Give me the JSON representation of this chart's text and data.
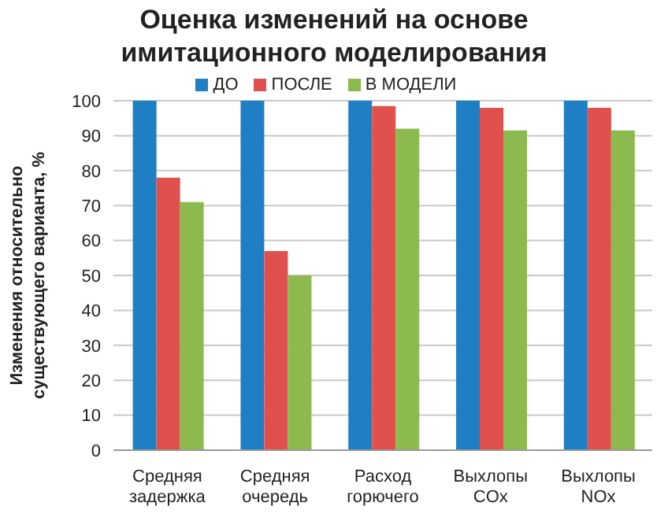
{
  "chart_data": {
    "type": "bar",
    "title": "Оценка изменений на основе имитационного моделирования",
    "ylabel": "Изменения относительно существующего варианта, %",
    "categories": [
      "Средняя задержка",
      "Средняя очередь",
      "Расход горючего",
      "Выхлопы COx",
      "Выхлопы NOx"
    ],
    "series": [
      {
        "name": "ДО",
        "color": "#1f7fc4",
        "values": [
          100,
          100,
          100,
          100,
          100
        ]
      },
      {
        "name": "ПОСЛЕ",
        "color": "#e0504d",
        "values": [
          78,
          57,
          98.5,
          98,
          98
        ]
      },
      {
        "name": "В МОДЕЛИ",
        "color": "#8cba4e",
        "values": [
          71,
          50,
          92,
          91.5,
          91.5
        ]
      }
    ],
    "ylim": [
      0,
      100
    ],
    "yticks": [
      0,
      10,
      20,
      30,
      40,
      50,
      60,
      70,
      80,
      90,
      100
    ],
    "grid": "y",
    "legend": "top"
  }
}
